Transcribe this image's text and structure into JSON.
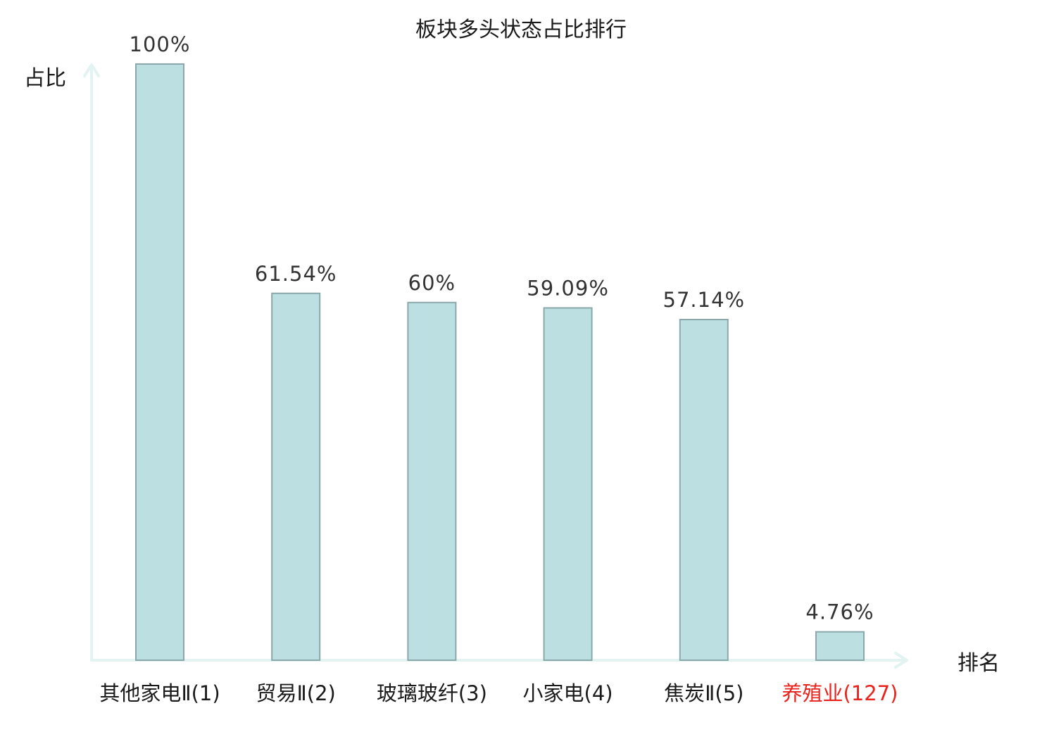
{
  "chart_data": {
    "type": "bar",
    "title": "板块多头状态占比排行",
    "ylabel": "占比",
    "xlabel": "排名",
    "ylim": [
      0,
      100
    ],
    "grid": false,
    "categories": [
      {
        "name": "其他家电Ⅱ",
        "rank": "(1)",
        "highlight": false
      },
      {
        "name": "贸易Ⅱ",
        "rank": "(2)",
        "highlight": false
      },
      {
        "name": "玻璃玻纤",
        "rank": "(3)",
        "highlight": false
      },
      {
        "name": "小家电",
        "rank": "(4)",
        "highlight": false
      },
      {
        "name": "焦炭Ⅱ",
        "rank": "(5)",
        "highlight": false
      },
      {
        "name": "养殖业",
        "rank": "(127)",
        "highlight": true
      }
    ],
    "values": [
      100,
      61.54,
      60,
      59.09,
      57.14,
      4.76
    ],
    "value_labels": [
      "100%",
      "61.54%",
      "60%",
      "59.09%",
      "57.14%",
      "4.76%"
    ]
  },
  "colors": {
    "bar_fill": "#bce0e2",
    "bar_stroke": "#8aa8ab",
    "axis": "#e3f3f1",
    "label_text": "#1a1a1a",
    "highlight_text": "#e8231c"
  }
}
